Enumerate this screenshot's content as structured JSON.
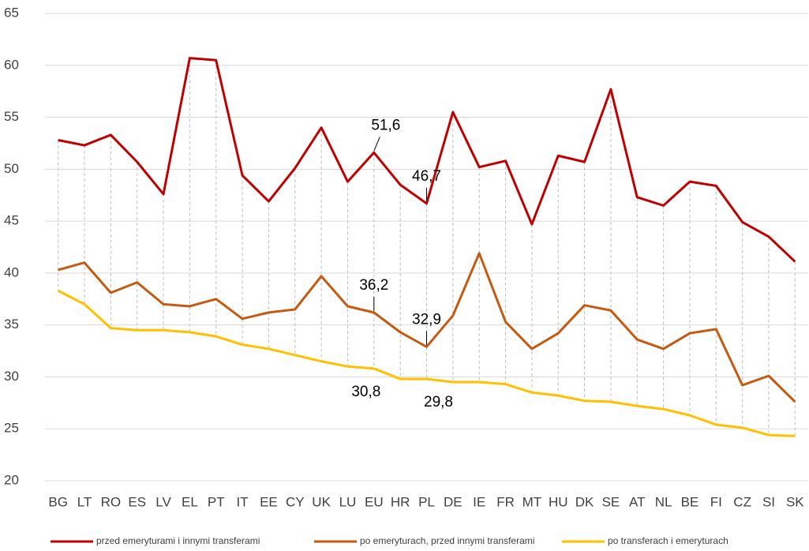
{
  "chart_data": {
    "type": "line",
    "categories": [
      "BG",
      "LT",
      "RO",
      "ES",
      "LV",
      "EL",
      "PT",
      "IT",
      "EE",
      "CY",
      "UK",
      "LU",
      "EU",
      "HR",
      "PL",
      "DE",
      "IE",
      "FR",
      "MT",
      "HU",
      "DK",
      "SE",
      "AT",
      "NL",
      "BE",
      "FI",
      "CZ",
      "SI",
      "SK"
    ],
    "series": [
      {
        "name": "przed emeryturami i innymi transferami",
        "color": "#c00000",
        "values": [
          52.8,
          52.3,
          53.3,
          50.7,
          47.6,
          60.7,
          60.5,
          49.4,
          46.9,
          50.1,
          54.0,
          48.8,
          51.6,
          48.5,
          46.7,
          55.5,
          50.2,
          50.8,
          44.7,
          51.3,
          50.7,
          57.7,
          47.3,
          46.5,
          48.8,
          48.4,
          44.9,
          43.5,
          41.1
        ],
        "value_labels": [
          null,
          null,
          null,
          null,
          null,
          null,
          null,
          null,
          null,
          null,
          null,
          null,
          "51,6",
          null,
          "46,7",
          null,
          null,
          null,
          null,
          null,
          null,
          null,
          null,
          null,
          null,
          null,
          null,
          null,
          null
        ]
      },
      {
        "name": "po emeryturach, przed innymi transferami",
        "color": "#c55a11",
        "values": [
          40.3,
          41.0,
          38.1,
          39.1,
          37.0,
          36.8,
          37.5,
          35.6,
          36.2,
          36.5,
          39.7,
          36.8,
          36.2,
          34.3,
          32.9,
          35.9,
          41.9,
          35.3,
          32.7,
          34.2,
          36.9,
          36.4,
          33.6,
          32.7,
          34.2,
          34.6,
          29.2,
          30.1,
          27.6
        ],
        "value_labels": [
          null,
          null,
          null,
          null,
          null,
          null,
          null,
          null,
          null,
          null,
          null,
          null,
          "36,2",
          null,
          "32,9",
          null,
          null,
          null,
          null,
          null,
          null,
          null,
          null,
          null,
          null,
          null,
          null,
          null,
          null
        ]
      },
      {
        "name": "po transferach i emeryturach",
        "color": "#ffc000",
        "values": [
          38.3,
          37.0,
          34.7,
          34.5,
          34.5,
          34.3,
          33.9,
          33.1,
          32.7,
          32.1,
          31.5,
          31.0,
          30.8,
          29.8,
          29.8,
          29.5,
          29.5,
          29.3,
          28.5,
          28.2,
          27.7,
          27.6,
          27.2,
          26.9,
          26.3,
          25.4,
          25.1,
          24.4,
          24.3
        ],
        "value_labels": [
          null,
          null,
          null,
          null,
          null,
          null,
          null,
          null,
          null,
          null,
          null,
          null,
          "30,8",
          null,
          "29,8",
          null,
          null,
          null,
          null,
          null,
          null,
          null,
          null,
          null,
          null,
          null,
          null,
          null,
          null
        ]
      }
    ],
    "ylim": [
      20,
      65
    ],
    "yticks": [
      20,
      25,
      30,
      35,
      40,
      45,
      50,
      55,
      60,
      65
    ],
    "grid": true,
    "legend": "bottom"
  }
}
